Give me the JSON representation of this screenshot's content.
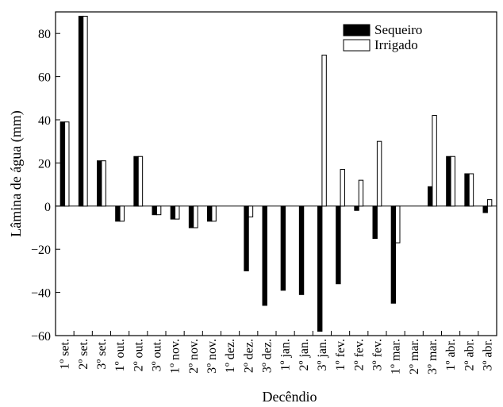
{
  "chart_data": {
    "type": "bar",
    "xlabel": "Decêndio",
    "ylabel": "Lâmina de água (mm)",
    "ylim": [
      -60,
      90
    ],
    "yticks": [
      -60,
      -40,
      -20,
      0,
      20,
      40,
      60,
      80
    ],
    "ytick_labels": [
      "−60",
      "−40",
      "−20",
      "0",
      "20",
      "40",
      "60",
      "80"
    ],
    "legend_position": "top-right",
    "grid": false,
    "categories": [
      "1º set.",
      "2º set.",
      "3º set.",
      "1º out.",
      "2º out.",
      "3º out.",
      "1º nov.",
      "2º nov.",
      "3º nov.",
      "1º dez.",
      "2º dez.",
      "3º dez.",
      "1º jan.",
      "2º jan.",
      "3º jan.",
      "1º fev.",
      "2º fev.",
      "3º fev.",
      "1º mar.",
      "2º mar.",
      "3º mar.",
      "1º abr.",
      "2º abr.",
      "3º abr."
    ],
    "series": [
      {
        "name": "Sequeiro",
        "color": "#000000",
        "values": [
          39,
          88,
          21,
          -7,
          23,
          -4,
          -6,
          -10,
          -7,
          0,
          -30,
          -46,
          -39,
          -41,
          -58,
          -36,
          -2,
          -15,
          -45,
          0,
          9,
          23,
          15,
          -3
        ]
      },
      {
        "name": "Irrigado",
        "color": "#ffffff",
        "values": [
          39,
          88,
          21,
          -7,
          23,
          -4,
          -6,
          -10,
          -7,
          0,
          -5,
          0,
          0,
          0,
          70,
          17,
          12,
          30,
          -17,
          0,
          42,
          23,
          15,
          3
        ]
      }
    ]
  }
}
